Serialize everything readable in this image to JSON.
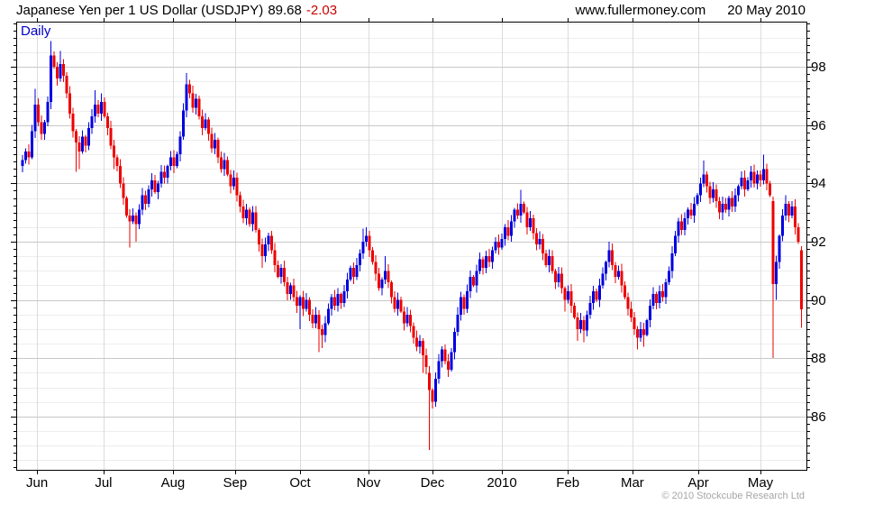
{
  "header": {
    "title": "Japanese Yen per 1 US Dollar (USDJPY)",
    "last_price": "89.68",
    "change": "-2.03",
    "website": "www.fullermoney.com",
    "date": "20 May 2010"
  },
  "footer": {
    "copyright": "© 2010 Stockcube Research Ltd"
  },
  "chart_data": {
    "type": "candlestick",
    "frequency_label": "Daily",
    "instrument": "USDJPY",
    "title": "Japanese Yen per 1 US Dollar",
    "last_close": 89.68,
    "change": -2.03,
    "legend_position": "none",
    "grid": true,
    "y_axis": {
      "side": "right",
      "range_shown": [
        84.1,
        99.6
      ],
      "tick_labels": [
        98,
        96,
        94,
        92,
        90,
        88,
        86
      ],
      "minor_tick_step": 0.25,
      "grid_minor_step": 0.5,
      "grid_major_step": 2
    },
    "x_axis": {
      "months": [
        "Jun",
        "Jul",
        "Aug",
        "Sep",
        "Oct",
        "Nov",
        "Dec",
        "2010",
        "Feb",
        "Mar",
        "Apr",
        "May"
      ],
      "month_start_bar": [
        4.6,
        25.7,
        47.7,
        67.4,
        88.0,
        109.7,
        130.0,
        152.0,
        172.9,
        193.4,
        214.3,
        234.0
      ]
    },
    "bars": {
      "count": 248,
      "note": "daily closes Jun-2009 through 20-May-2010; open = previous close; h/l/o/c overrides below",
      "first_open": 94.6,
      "closes": [
        94.8,
        95.1,
        94.9,
        95.8,
        96.7,
        96.1,
        95.7,
        96.1,
        96.8,
        98.4,
        98.0,
        97.6,
        98.1,
        97.7,
        97.1,
        96.4,
        95.8,
        95.4,
        95.1,
        95.6,
        95.3,
        95.9,
        96.3,
        96.7,
        96.4,
        96.8,
        96.3,
        95.9,
        95.3,
        94.9,
        94.6,
        94.0,
        93.5,
        92.9,
        92.7,
        92.9,
        92.6,
        93.1,
        93.6,
        93.3,
        93.8,
        94.1,
        93.7,
        94.0,
        94.4,
        94.2,
        94.6,
        94.9,
        94.6,
        95.0,
        95.6,
        96.5,
        97.4,
        97.1,
        96.6,
        96.9,
        96.3,
        95.9,
        96.2,
        95.7,
        95.2,
        95.5,
        94.9,
        94.5,
        94.8,
        94.3,
        93.9,
        94.2,
        93.6,
        93.2,
        92.8,
        93.1,
        92.6,
        93.0,
        92.4,
        91.9,
        91.5,
        91.9,
        92.2,
        91.7,
        91.2,
        90.8,
        91.1,
        90.6,
        90.2,
        90.5,
        90.1,
        89.8,
        90.1,
        89.7,
        90.0,
        89.5,
        89.2,
        89.5,
        89.0,
        88.8,
        89.2,
        89.7,
        90.1,
        89.8,
        90.2,
        89.9,
        90.3,
        90.7,
        91.1,
        90.8,
        91.2,
        91.6,
        92.0,
        92.2,
        91.7,
        91.3,
        90.9,
        90.4,
        90.7,
        91.0,
        90.6,
        90.1,
        89.7,
        90.0,
        89.6,
        89.2,
        89.5,
        89.1,
        88.7,
        88.4,
        88.6,
        88.1,
        87.7,
        86.9,
        86.5,
        87.3,
        87.9,
        88.3,
        87.9,
        87.6,
        88.2,
        88.9,
        89.5,
        90.1,
        89.7,
        90.3,
        90.8,
        90.5,
        91.0,
        91.4,
        91.1,
        91.5,
        91.3,
        91.7,
        92.0,
        91.8,
        92.1,
        92.5,
        92.2,
        92.7,
        93.1,
        92.9,
        93.3,
        93.0,
        92.5,
        92.8,
        92.3,
        91.9,
        92.1,
        91.6,
        91.2,
        91.5,
        91.0,
        90.6,
        90.9,
        90.4,
        90.0,
        90.3,
        89.8,
        89.4,
        89.0,
        89.3,
        88.95,
        89.5,
        89.9,
        90.3,
        90.0,
        90.5,
        90.9,
        91.3,
        91.7,
        91.2,
        90.8,
        91.0,
        90.5,
        90.1,
        89.7,
        89.4,
        89.0,
        88.7,
        89.0,
        88.8,
        89.3,
        89.8,
        90.2,
        89.9,
        90.3,
        90.1,
        90.6,
        91.0,
        91.6,
        92.2,
        92.7,
        92.4,
        92.8,
        93.1,
        92.9,
        93.3,
        93.6,
        94.0,
        94.3,
        93.9,
        93.5,
        93.8,
        93.4,
        93.0,
        93.3,
        93.1,
        93.5,
        93.2,
        93.6,
        93.9,
        94.2,
        93.8,
        94.1,
        94.4,
        94.0,
        94.3,
        94.1,
        94.5,
        94.0,
        93.6,
        90.55,
        91.3,
        92.2,
        92.9,
        93.3,
        92.9,
        93.2,
        92.5,
        92.0,
        89.68
      ],
      "overrides": {
        "4": {
          "h": 97.25
        },
        "9": {
          "h": 98.89
        },
        "12": {
          "h": 98.55
        },
        "17": {
          "l": 94.4
        },
        "18": {
          "l": 94.5
        },
        "23": {
          "h": 97.2
        },
        "25": {
          "h": 97.1
        },
        "29": {
          "l": 94.5
        },
        "34": {
          "l": 91.8
        },
        "36": {
          "l": 92.0
        },
        "52": {
          "h": 97.79
        },
        "76": {
          "l": 91.1
        },
        "88": {
          "l": 89.0
        },
        "94": {
          "l": 88.2
        },
        "95": {
          "l": 88.35
        },
        "108": {
          "h": 92.45
        },
        "109": {
          "h": 92.5
        },
        "115": {
          "h": 91.5
        },
        "127": {
          "l": 87.5
        },
        "129": {
          "o": 87.5,
          "l": 84.85
        },
        "158": {
          "h": 93.78
        },
        "172": {
          "l": 89.6
        },
        "176": {
          "l": 88.6
        },
        "178": {
          "l": 88.55
        },
        "186": {
          "h": 92.0
        },
        "195": {
          "l": 88.3
        },
        "197": {
          "l": 88.4
        },
        "216": {
          "h": 94.78
        },
        "221": {
          "l": 92.78
        },
        "231": {
          "h": 94.6
        },
        "235": {
          "h": 94.99
        },
        "238": {
          "o": 93.4,
          "c": 90.55,
          "l": 88.0,
          "h": 93.55
        },
        "239": {
          "l": 90.0
        },
        "242": {
          "h": 93.6
        },
        "247": {
          "o": 91.71,
          "c": 89.68,
          "l": 89.05,
          "h": 91.85
        }
      }
    },
    "colors": {
      "up": "#0000e0",
      "down": "#ee0000",
      "grid_minor": "#ededed",
      "grid_major": "#c8c8c8",
      "grid_month": "#dcdcdc",
      "axis": "#000000",
      "daily_label": "#0000cc",
      "change_text": "#cc0000",
      "copyright_text": "#a6a6a6"
    }
  }
}
